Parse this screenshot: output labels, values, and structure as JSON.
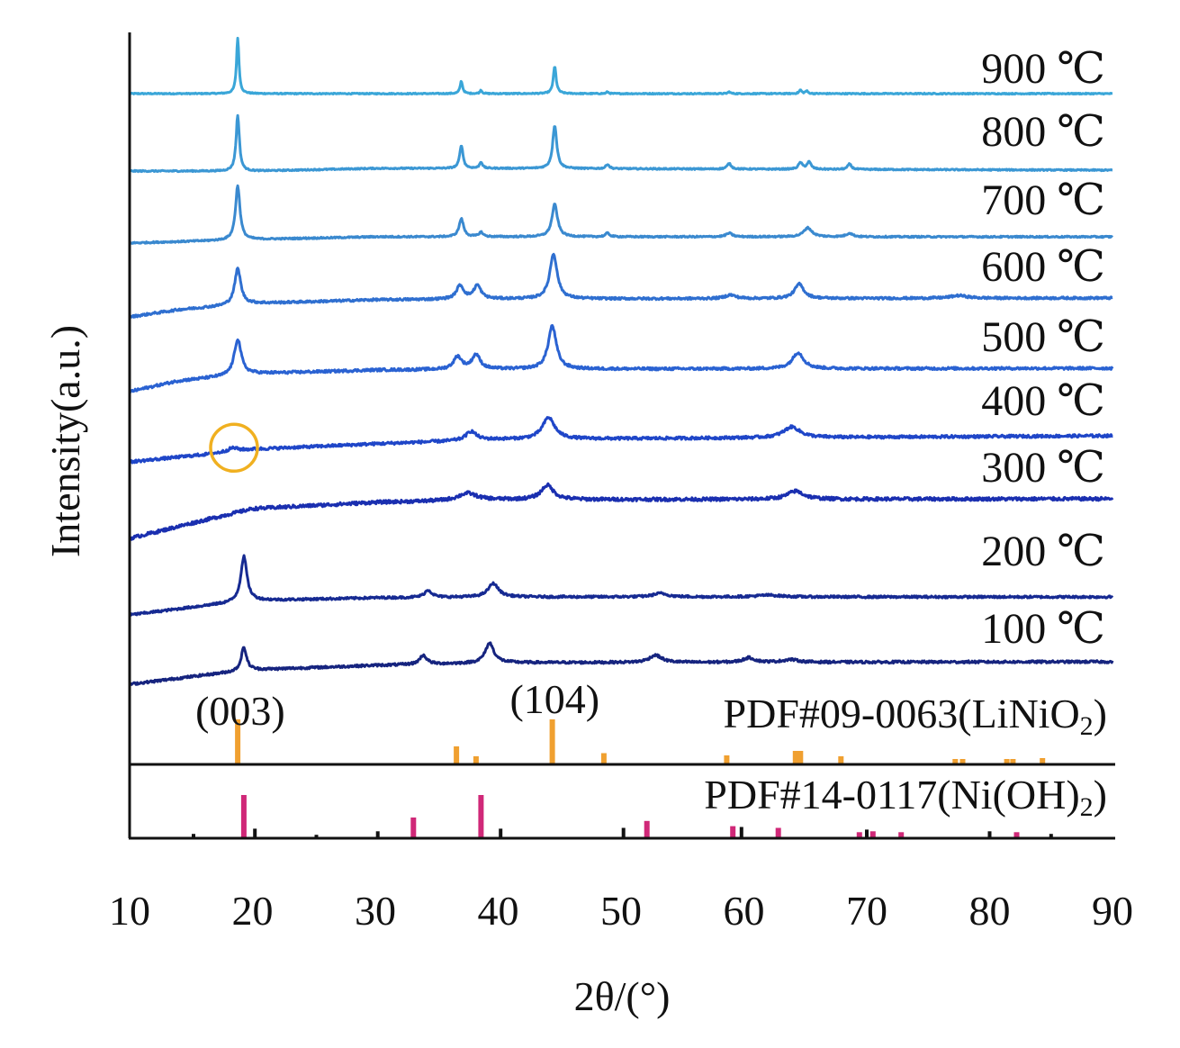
{
  "chart_data": {
    "type": "line",
    "xlabel": "2θ/(°)",
    "ylabel": "Intensity(a.u.)",
    "xlim": [
      10,
      90
    ],
    "x_ticks": [
      10,
      20,
      30,
      40,
      50,
      60,
      70,
      80,
      90
    ],
    "series": [
      {
        "name": "900 ℃",
        "color": "#3aa6d8",
        "noise": 0.6,
        "points": [
          [
            10,
            0
          ],
          [
            90,
            0
          ]
        ],
        "peaks": [
          [
            18.8,
            62,
            0.12
          ],
          [
            37.0,
            14,
            0.12
          ],
          [
            38.6,
            4,
            0.1
          ],
          [
            44.6,
            30,
            0.14
          ],
          [
            48.9,
            2,
            0.1
          ],
          [
            58.8,
            2,
            0.12
          ],
          [
            64.6,
            4,
            0.12
          ],
          [
            65.1,
            3,
            0.12
          ]
        ]
      },
      {
        "name": "800 ℃",
        "color": "#3b97d4",
        "noise": 0.7,
        "points": [
          [
            10,
            0
          ],
          [
            20,
            0
          ],
          [
            30,
            3
          ],
          [
            40,
            3
          ],
          [
            90,
            1
          ]
        ],
        "peaks": [
          [
            18.8,
            62,
            0.16
          ],
          [
            37.0,
            26,
            0.16
          ],
          [
            38.6,
            7,
            0.14
          ],
          [
            44.6,
            48,
            0.2
          ],
          [
            48.9,
            5,
            0.16
          ],
          [
            58.8,
            6,
            0.2
          ],
          [
            64.6,
            7,
            0.2
          ],
          [
            65.3,
            8,
            0.2
          ],
          [
            68.6,
            6,
            0.18
          ]
        ]
      },
      {
        "name": "700 ℃",
        "color": "#3a89cf",
        "noise": 0.8,
        "points": [
          [
            10,
            0
          ],
          [
            20,
            4
          ],
          [
            30,
            7
          ],
          [
            40,
            7
          ],
          [
            90,
            7
          ]
        ],
        "peaks": [
          [
            18.8,
            60,
            0.22
          ],
          [
            37.0,
            20,
            0.22
          ],
          [
            38.6,
            5,
            0.2
          ],
          [
            44.6,
            36,
            0.27
          ],
          [
            48.9,
            4,
            0.2
          ],
          [
            58.8,
            4,
            0.3
          ],
          [
            65.2,
            10,
            0.4
          ],
          [
            68.6,
            4,
            0.3
          ]
        ]
      },
      {
        "name": "600 ℃",
        "color": "#2f6fd0",
        "noise": 1.2,
        "points": [
          [
            10,
            0
          ],
          [
            14,
            8
          ],
          [
            20,
            15
          ],
          [
            30,
            19
          ],
          [
            40,
            20
          ],
          [
            90,
            21
          ]
        ],
        "peaks": [
          [
            18.8,
            40,
            0.3
          ],
          [
            36.9,
            15,
            0.35
          ],
          [
            38.3,
            15,
            0.35
          ],
          [
            44.5,
            50,
            0.36
          ],
          [
            58.9,
            4,
            0.5
          ],
          [
            64.5,
            16,
            0.45
          ],
          [
            77.5,
            3,
            0.8
          ]
        ]
      },
      {
        "name": "500 ℃",
        "color": "#2a62d2",
        "noise": 1.4,
        "points": [
          [
            10,
            0
          ],
          [
            14,
            12
          ],
          [
            20,
            20
          ],
          [
            30,
            24
          ],
          [
            40,
            25
          ],
          [
            90,
            26
          ]
        ],
        "peaks": [
          [
            18.8,
            40,
            0.34
          ],
          [
            36.7,
            14,
            0.4
          ],
          [
            38.2,
            16,
            0.4
          ],
          [
            44.4,
            48,
            0.4
          ],
          [
            64.4,
            18,
            0.55
          ]
        ]
      },
      {
        "name": "400 ℃",
        "color": "#1f46c8",
        "noise": 1.5,
        "points": [
          [
            10,
            0
          ],
          [
            16,
            8
          ],
          [
            20,
            14
          ],
          [
            30,
            20
          ],
          [
            40,
            25
          ],
          [
            90,
            29
          ]
        ],
        "peaks": [
          [
            18.4,
            4,
            0.5
          ],
          [
            37.8,
            10,
            0.5
          ],
          [
            44.1,
            24,
            0.6
          ],
          [
            63.9,
            12,
            0.8
          ]
        ]
      },
      {
        "name": "300 ℃",
        "color": "#1a2fb0",
        "noise": 1.8,
        "points": [
          [
            10,
            0
          ],
          [
            16,
            20
          ],
          [
            20,
            33
          ],
          [
            30,
            40
          ],
          [
            40,
            43
          ],
          [
            90,
            44
          ]
        ],
        "peaks": [
          [
            37.5,
            8,
            0.9
          ],
          [
            44.0,
            16,
            0.6
          ],
          [
            64.2,
            9,
            0.8
          ]
        ]
      },
      {
        "name": "200 ℃",
        "color": "#162a92",
        "noise": 1.2,
        "points": [
          [
            10,
            0
          ],
          [
            16,
            10
          ],
          [
            20,
            16
          ],
          [
            30,
            19
          ],
          [
            40,
            20
          ],
          [
            90,
            20
          ]
        ],
        "peaks": [
          [
            19.3,
            50,
            0.3
          ],
          [
            34.3,
            8,
            0.36
          ],
          [
            39.6,
            15,
            0.5
          ],
          [
            53.2,
            4,
            0.7
          ],
          [
            62,
            2,
            1.2
          ]
        ]
      },
      {
        "name": "100 ℃",
        "color": "#16247f",
        "noise": 1.3,
        "points": [
          [
            10,
            0
          ],
          [
            16,
            10
          ],
          [
            20,
            16
          ],
          [
            30,
            21
          ],
          [
            40,
            24
          ],
          [
            90,
            25
          ]
        ],
        "peaks": [
          [
            19.3,
            26,
            0.26
          ],
          [
            33.9,
            10,
            0.35
          ],
          [
            39.3,
            22,
            0.42
          ],
          [
            52.8,
            8,
            0.6
          ],
          [
            60.4,
            5,
            0.55
          ],
          [
            63.8,
            3,
            0.7
          ]
        ]
      }
    ],
    "reference_patterns": [
      {
        "name": "PDF#09-0063(LiNiO",
        "subscript": "2",
        "close": ")",
        "color": "#f0a030",
        "lines": [
          [
            18.8,
            100
          ],
          [
            36.6,
            40
          ],
          [
            38.2,
            18
          ],
          [
            44.4,
            100
          ],
          [
            48.6,
            25
          ],
          [
            58.6,
            20
          ],
          [
            64.2,
            30
          ],
          [
            64.6,
            30
          ],
          [
            67.9,
            18
          ],
          [
            77.2,
            12
          ],
          [
            77.8,
            12
          ],
          [
            81.4,
            12
          ],
          [
            81.9,
            12
          ],
          [
            84.3,
            14
          ]
        ]
      },
      {
        "name": "PDF#14-0117(Ni(OH)",
        "subscript": "2",
        "close": ")",
        "color": "#d02878",
        "lines": [
          [
            19.3,
            100
          ],
          [
            33.1,
            48
          ],
          [
            38.6,
            100
          ],
          [
            52.1,
            40
          ],
          [
            59.1,
            28
          ],
          [
            62.8,
            24
          ],
          [
            69.4,
            14
          ],
          [
            70.5,
            16
          ],
          [
            72.8,
            14
          ],
          [
            82.2,
            14
          ]
        ],
        "minor_lines": [
          [
            20.2,
            22
          ],
          [
            15.2,
            10
          ],
          [
            25.2,
            8
          ],
          [
            30.2,
            16
          ],
          [
            40.2,
            22
          ],
          [
            50.2,
            24
          ],
          [
            59.8,
            26
          ],
          [
            70.0,
            20
          ],
          [
            80.0,
            16
          ],
          [
            85.0,
            10
          ]
        ]
      }
    ],
    "annotations": [
      {
        "text": "(003)",
        "x": 19
      },
      {
        "text": "(104)",
        "x": 44.6
      }
    ],
    "highlight": {
      "x": 18.5,
      "series": "400 ℃",
      "color": "#f0b020"
    },
    "grid": false,
    "legend": "none; series labels printed at right end of each trace"
  }
}
